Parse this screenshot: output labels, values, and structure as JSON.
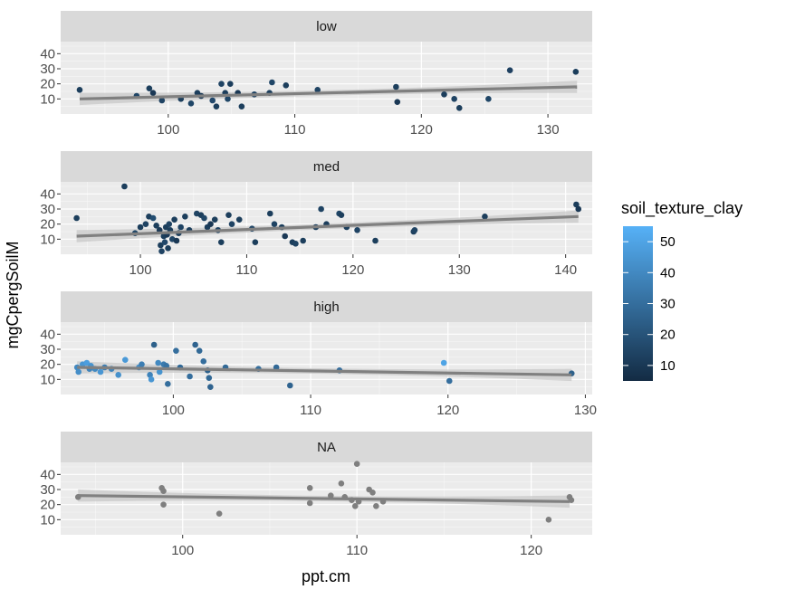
{
  "chart_data": {
    "type": "scatter",
    "xlabel": "ppt.cm",
    "ylabel": "mgCpergSoilM",
    "legend": {
      "title": "soil_texture_clay",
      "placement": "right",
      "range": [
        5,
        55
      ],
      "ticks": [
        10,
        20,
        30,
        40,
        50
      ],
      "low_color": "#132b43",
      "high_color": "#56b1f7"
    },
    "na_color": "#7f7f7f",
    "trend_color": "#808080",
    "band_color": "#c8c8c8",
    "panels": [
      {
        "label": "low",
        "xlim": [
          91.5,
          133.5
        ],
        "ylim": [
          0,
          48
        ],
        "xticks": [
          100,
          110,
          120,
          130
        ],
        "yticks": [
          10,
          20,
          30,
          40
        ],
        "fit": {
          "x": [
            93,
            132.3
          ],
          "y": [
            10,
            18
          ]
        },
        "points": [
          {
            "x": 93,
            "y": 16,
            "c": 12
          },
          {
            "x": 97.5,
            "y": 12,
            "c": 15
          },
          {
            "x": 98.5,
            "y": 17,
            "c": 12
          },
          {
            "x": 98.8,
            "y": 14,
            "c": 10
          },
          {
            "x": 99.5,
            "y": 9,
            "c": 14
          },
          {
            "x": 101,
            "y": 10,
            "c": 12
          },
          {
            "x": 101.8,
            "y": 7,
            "c": 15
          },
          {
            "x": 102.3,
            "y": 14,
            "c": 12
          },
          {
            "x": 102.6,
            "y": 12,
            "c": 10
          },
          {
            "x": 103.5,
            "y": 9,
            "c": 16
          },
          {
            "x": 103.8,
            "y": 5,
            "c": 12
          },
          {
            "x": 104.2,
            "y": 20,
            "c": 14
          },
          {
            "x": 104.5,
            "y": 14,
            "c": 12
          },
          {
            "x": 104.7,
            "y": 10,
            "c": 15
          },
          {
            "x": 104.9,
            "y": 20,
            "c": 12
          },
          {
            "x": 105.5,
            "y": 14,
            "c": 10
          },
          {
            "x": 105.8,
            "y": 5,
            "c": 12
          },
          {
            "x": 106.8,
            "y": 13,
            "c": 14
          },
          {
            "x": 108,
            "y": 14,
            "c": 12
          },
          {
            "x": 108.2,
            "y": 21,
            "c": 15
          },
          {
            "x": 109.3,
            "y": 19,
            "c": 12
          },
          {
            "x": 111.8,
            "y": 16,
            "c": 14
          },
          {
            "x": 118,
            "y": 18,
            "c": 12
          },
          {
            "x": 118.1,
            "y": 8,
            "c": 10
          },
          {
            "x": 121.8,
            "y": 13,
            "c": 12
          },
          {
            "x": 122.6,
            "y": 10,
            "c": 14
          },
          {
            "x": 123,
            "y": 4,
            "c": 12
          },
          {
            "x": 125.3,
            "y": 10,
            "c": 15
          },
          {
            "x": 127,
            "y": 29,
            "c": 13
          },
          {
            "x": 132.2,
            "y": 28,
            "c": 12
          }
        ]
      },
      {
        "label": "med",
        "xlim": [
          92.5,
          142.5
        ],
        "ylim": [
          0,
          48
        ],
        "xticks": [
          100,
          110,
          120,
          130,
          140
        ],
        "yticks": [
          10,
          20,
          30,
          40
        ],
        "fit": {
          "x": [
            94,
            141.2
          ],
          "y": [
            12,
            25
          ]
        },
        "points": [
          {
            "x": 94,
            "y": 24,
            "c": 12
          },
          {
            "x": 98.5,
            "y": 45,
            "c": 12
          },
          {
            "x": 99.5,
            "y": 14,
            "c": 15
          },
          {
            "x": 100,
            "y": 18,
            "c": 12
          },
          {
            "x": 100.5,
            "y": 20,
            "c": 14
          },
          {
            "x": 100.8,
            "y": 25,
            "c": 12
          },
          {
            "x": 101.2,
            "y": 24,
            "c": 18
          },
          {
            "x": 101.5,
            "y": 19,
            "c": 12
          },
          {
            "x": 101.8,
            "y": 16,
            "c": 10
          },
          {
            "x": 101.9,
            "y": 6,
            "c": 12
          },
          {
            "x": 102,
            "y": 2,
            "c": 14
          },
          {
            "x": 102.2,
            "y": 12,
            "c": 12
          },
          {
            "x": 102.3,
            "y": 8,
            "c": 16
          },
          {
            "x": 102.4,
            "y": 18,
            "c": 12
          },
          {
            "x": 102.5,
            "y": 13,
            "c": 10
          },
          {
            "x": 102.6,
            "y": 4,
            "c": 12
          },
          {
            "x": 102.7,
            "y": 20,
            "c": 14
          },
          {
            "x": 102.8,
            "y": 16,
            "c": 12
          },
          {
            "x": 103,
            "y": 10,
            "c": 15
          },
          {
            "x": 103.2,
            "y": 23,
            "c": 12
          },
          {
            "x": 103.4,
            "y": 9,
            "c": 10
          },
          {
            "x": 103.6,
            "y": 14,
            "c": 12
          },
          {
            "x": 103.8,
            "y": 18,
            "c": 14
          },
          {
            "x": 104.2,
            "y": 25,
            "c": 12
          },
          {
            "x": 104.6,
            "y": 16,
            "c": 12
          },
          {
            "x": 105.3,
            "y": 27,
            "c": 14
          },
          {
            "x": 105.7,
            "y": 26,
            "c": 12
          },
          {
            "x": 106,
            "y": 24,
            "c": 15
          },
          {
            "x": 106.3,
            "y": 18,
            "c": 12
          },
          {
            "x": 106.6,
            "y": 20,
            "c": 10
          },
          {
            "x": 107,
            "y": 23,
            "c": 12
          },
          {
            "x": 107.3,
            "y": 16,
            "c": 14
          },
          {
            "x": 107.6,
            "y": 8,
            "c": 12
          },
          {
            "x": 108.3,
            "y": 26,
            "c": 12
          },
          {
            "x": 108.6,
            "y": 20,
            "c": 14
          },
          {
            "x": 109.3,
            "y": 23,
            "c": 12
          },
          {
            "x": 110.5,
            "y": 17,
            "c": 15
          },
          {
            "x": 110.8,
            "y": 8,
            "c": 12
          },
          {
            "x": 112.2,
            "y": 27,
            "c": 12
          },
          {
            "x": 112.6,
            "y": 20,
            "c": 14
          },
          {
            "x": 113.3,
            "y": 18,
            "c": 12
          },
          {
            "x": 113.6,
            "y": 12,
            "c": 10
          },
          {
            "x": 114.3,
            "y": 8,
            "c": 12
          },
          {
            "x": 114.6,
            "y": 7,
            "c": 14
          },
          {
            "x": 115.3,
            "y": 9,
            "c": 12
          },
          {
            "x": 116.5,
            "y": 18,
            "c": 12
          },
          {
            "x": 117,
            "y": 30,
            "c": 14
          },
          {
            "x": 117.5,
            "y": 20,
            "c": 12
          },
          {
            "x": 118.7,
            "y": 27,
            "c": 15
          },
          {
            "x": 118.9,
            "y": 26,
            "c": 12
          },
          {
            "x": 119.4,
            "y": 18,
            "c": 12
          },
          {
            "x": 120.4,
            "y": 16,
            "c": 14
          },
          {
            "x": 122.1,
            "y": 9,
            "c": 12
          },
          {
            "x": 125.7,
            "y": 15,
            "c": 12
          },
          {
            "x": 125.8,
            "y": 16,
            "c": 14
          },
          {
            "x": 132.4,
            "y": 25,
            "c": 12
          },
          {
            "x": 141,
            "y": 33,
            "c": 12
          },
          {
            "x": 141.2,
            "y": 30,
            "c": 10
          }
        ]
      },
      {
        "label": "high",
        "xlim": [
          91.8,
          130.5
        ],
        "ylim": [
          0,
          48
        ],
        "xticks": [
          100,
          110,
          120,
          130
        ],
        "yticks": [
          10,
          20,
          30,
          40
        ],
        "fit": {
          "x": [
            93,
            129
          ],
          "y": [
            18,
            13
          ]
        },
        "points": [
          {
            "x": 93,
            "y": 18,
            "c": 40
          },
          {
            "x": 93.1,
            "y": 15,
            "c": 42
          },
          {
            "x": 93.4,
            "y": 20,
            "c": 45
          },
          {
            "x": 93.7,
            "y": 21,
            "c": 48
          },
          {
            "x": 93.9,
            "y": 17,
            "c": 38
          },
          {
            "x": 94,
            "y": 19,
            "c": 44
          },
          {
            "x": 94.3,
            "y": 17,
            "c": 40
          },
          {
            "x": 94.7,
            "y": 15,
            "c": 45
          },
          {
            "x": 95,
            "y": 18,
            "c": 36
          },
          {
            "x": 95.5,
            "y": 17,
            "c": 38
          },
          {
            "x": 96,
            "y": 13,
            "c": 43
          },
          {
            "x": 96.5,
            "y": 23,
            "c": 46
          },
          {
            "x": 97.5,
            "y": 18,
            "c": 42
          },
          {
            "x": 97.7,
            "y": 20,
            "c": 36
          },
          {
            "x": 98.3,
            "y": 13,
            "c": 38
          },
          {
            "x": 98.4,
            "y": 10,
            "c": 45
          },
          {
            "x": 98.6,
            "y": 33,
            "c": 25
          },
          {
            "x": 98.9,
            "y": 21,
            "c": 40
          },
          {
            "x": 99,
            "y": 15,
            "c": 44
          },
          {
            "x": 99.3,
            "y": 20,
            "c": 35
          },
          {
            "x": 99.5,
            "y": 19,
            "c": 32
          },
          {
            "x": 99.6,
            "y": 7,
            "c": 30
          },
          {
            "x": 100.2,
            "y": 29,
            "c": 30
          },
          {
            "x": 100.5,
            "y": 18,
            "c": 28
          },
          {
            "x": 101.2,
            "y": 12,
            "c": 30
          },
          {
            "x": 101.6,
            "y": 33,
            "c": 26
          },
          {
            "x": 101.9,
            "y": 29,
            "c": 28
          },
          {
            "x": 102.2,
            "y": 22,
            "c": 30
          },
          {
            "x": 102.5,
            "y": 16,
            "c": 25
          },
          {
            "x": 102.6,
            "y": 11,
            "c": 28
          },
          {
            "x": 102.7,
            "y": 5,
            "c": 26
          },
          {
            "x": 103.8,
            "y": 18,
            "c": 28
          },
          {
            "x": 106.2,
            "y": 17,
            "c": 30
          },
          {
            "x": 107.5,
            "y": 18,
            "c": 28
          },
          {
            "x": 108.5,
            "y": 6,
            "c": 26
          },
          {
            "x": 112.1,
            "y": 16,
            "c": 30
          },
          {
            "x": 119.7,
            "y": 21,
            "c": 50
          },
          {
            "x": 120.1,
            "y": 9,
            "c": 30
          },
          {
            "x": 129,
            "y": 14,
            "c": 25
          }
        ]
      },
      {
        "label": "NA",
        "xlim": [
          93,
          123.5
        ],
        "ylim": [
          0,
          48
        ],
        "xticks": [
          100,
          110,
          120
        ],
        "yticks": [
          10,
          20,
          30,
          40
        ],
        "fit": {
          "x": [
            94,
            122.2
          ],
          "y": [
            26,
            22
          ]
        },
        "points": [
          {
            "x": 94,
            "y": 25
          },
          {
            "x": 98.8,
            "y": 31
          },
          {
            "x": 98.9,
            "y": 29
          },
          {
            "x": 98.9,
            "y": 20
          },
          {
            "x": 102.1,
            "y": 14
          },
          {
            "x": 107.3,
            "y": 31
          },
          {
            "x": 107.3,
            "y": 21
          },
          {
            "x": 108.5,
            "y": 26
          },
          {
            "x": 109.1,
            "y": 34
          },
          {
            "x": 109.3,
            "y": 25
          },
          {
            "x": 109.7,
            "y": 23
          },
          {
            "x": 109.9,
            "y": 19
          },
          {
            "x": 110,
            "y": 47
          },
          {
            "x": 110.1,
            "y": 22
          },
          {
            "x": 110.7,
            "y": 30
          },
          {
            "x": 110.9,
            "y": 28
          },
          {
            "x": 111.1,
            "y": 19
          },
          {
            "x": 111.5,
            "y": 22
          },
          {
            "x": 121,
            "y": 10
          },
          {
            "x": 122.2,
            "y": 25
          },
          {
            "x": 122.3,
            "y": 23
          }
        ]
      }
    ]
  }
}
